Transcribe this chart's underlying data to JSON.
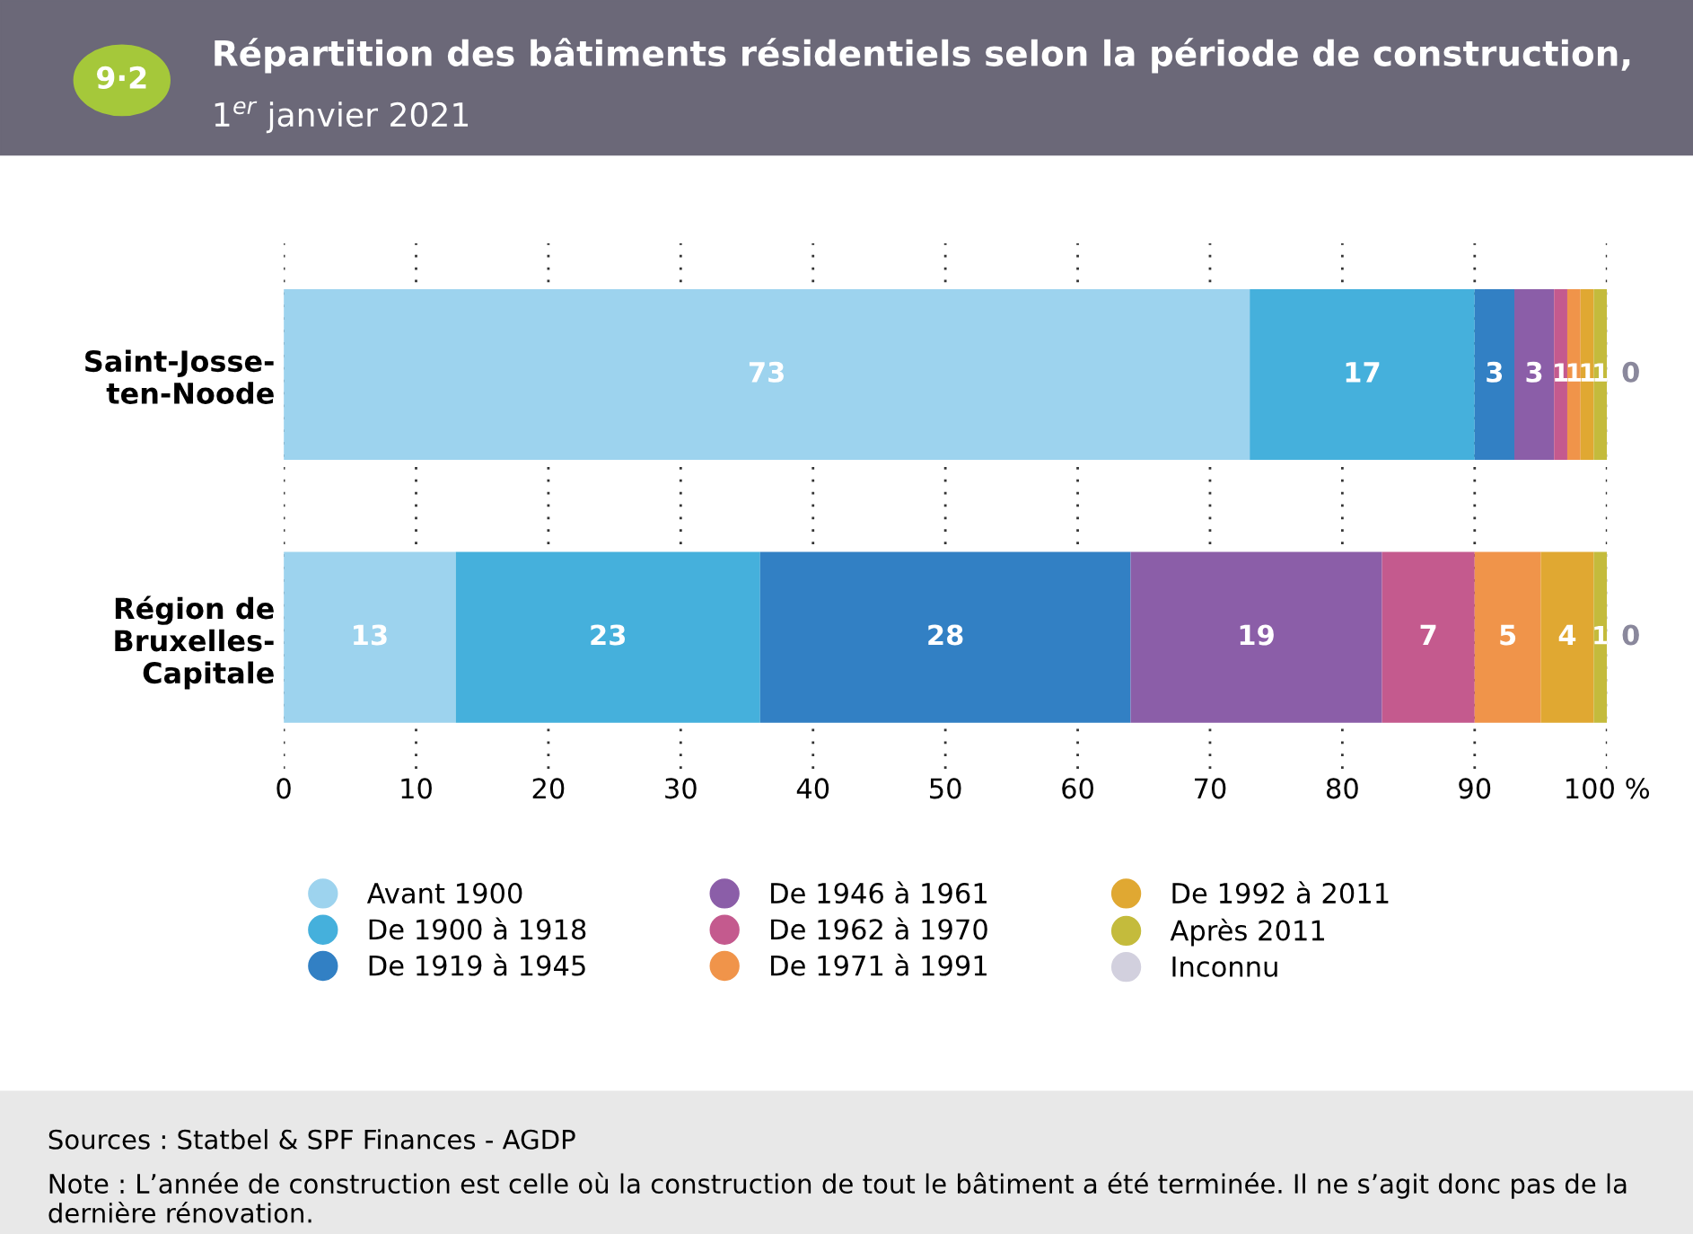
{
  "chart_data": {
    "type": "bar",
    "orientation": "horizontal",
    "stacked": true,
    "title": "Répartition des bâtiments résidentiels selon la période de construction,",
    "subtitle": "1$^{er}$ janvier 2021",
    "categories": [
      "Saint-Josse-\nten-Noode",
      "Région de\nBruxelles-\nCapitale"
    ],
    "series": [
      {
        "name": "Avant 1900",
        "color": "#9dd3ee",
        "values": [
          73,
          13
        ]
      },
      {
        "name": "De 1900 à 1918",
        "color": "#45b0dc",
        "values": [
          17,
          23
        ]
      },
      {
        "name": "De 1919 à 1945",
        "color": "#3280c4",
        "values": [
          3,
          28
        ]
      },
      {
        "name": "De 1946 à 1961",
        "color": "#8b5ea8",
        "values": [
          3,
          19
        ]
      },
      {
        "name": "De 1962 à 1970",
        "color": "#c45a8e",
        "values": [
          1,
          7
        ]
      },
      {
        "name": "De 1971 à 1991",
        "color": "#f0944a",
        "values": [
          1,
          5
        ]
      },
      {
        "name": "De 1992 à 2011",
        "color": "#e0a832",
        "values": [
          1,
          4
        ]
      },
      {
        "name": "Après 2011",
        "color": "#c4bb3c",
        "values": [
          1,
          1
        ]
      },
      {
        "name": "Inconnu",
        "color": "#d2d0de",
        "values": [
          0,
          0
        ]
      }
    ],
    "xlim": [
      0,
      100
    ],
    "xticks": [
      0,
      10,
      20,
      30,
      40,
      50,
      60,
      70,
      80,
      90,
      {
        "value": 100,
        "label": "100 %"
      }
    ],
    "grid": "x",
    "legend": "bottom",
    "data_labels": true,
    "annotations": [
      "9·2",
      "Sources : Statbel & SPF Finances - AGDP",
      "Note : L’année de construction est celle où la construction de tout le bâtiment a été terminée. Il ne s’agit donc pas de la dernière rénovation."
    ]
  }
}
